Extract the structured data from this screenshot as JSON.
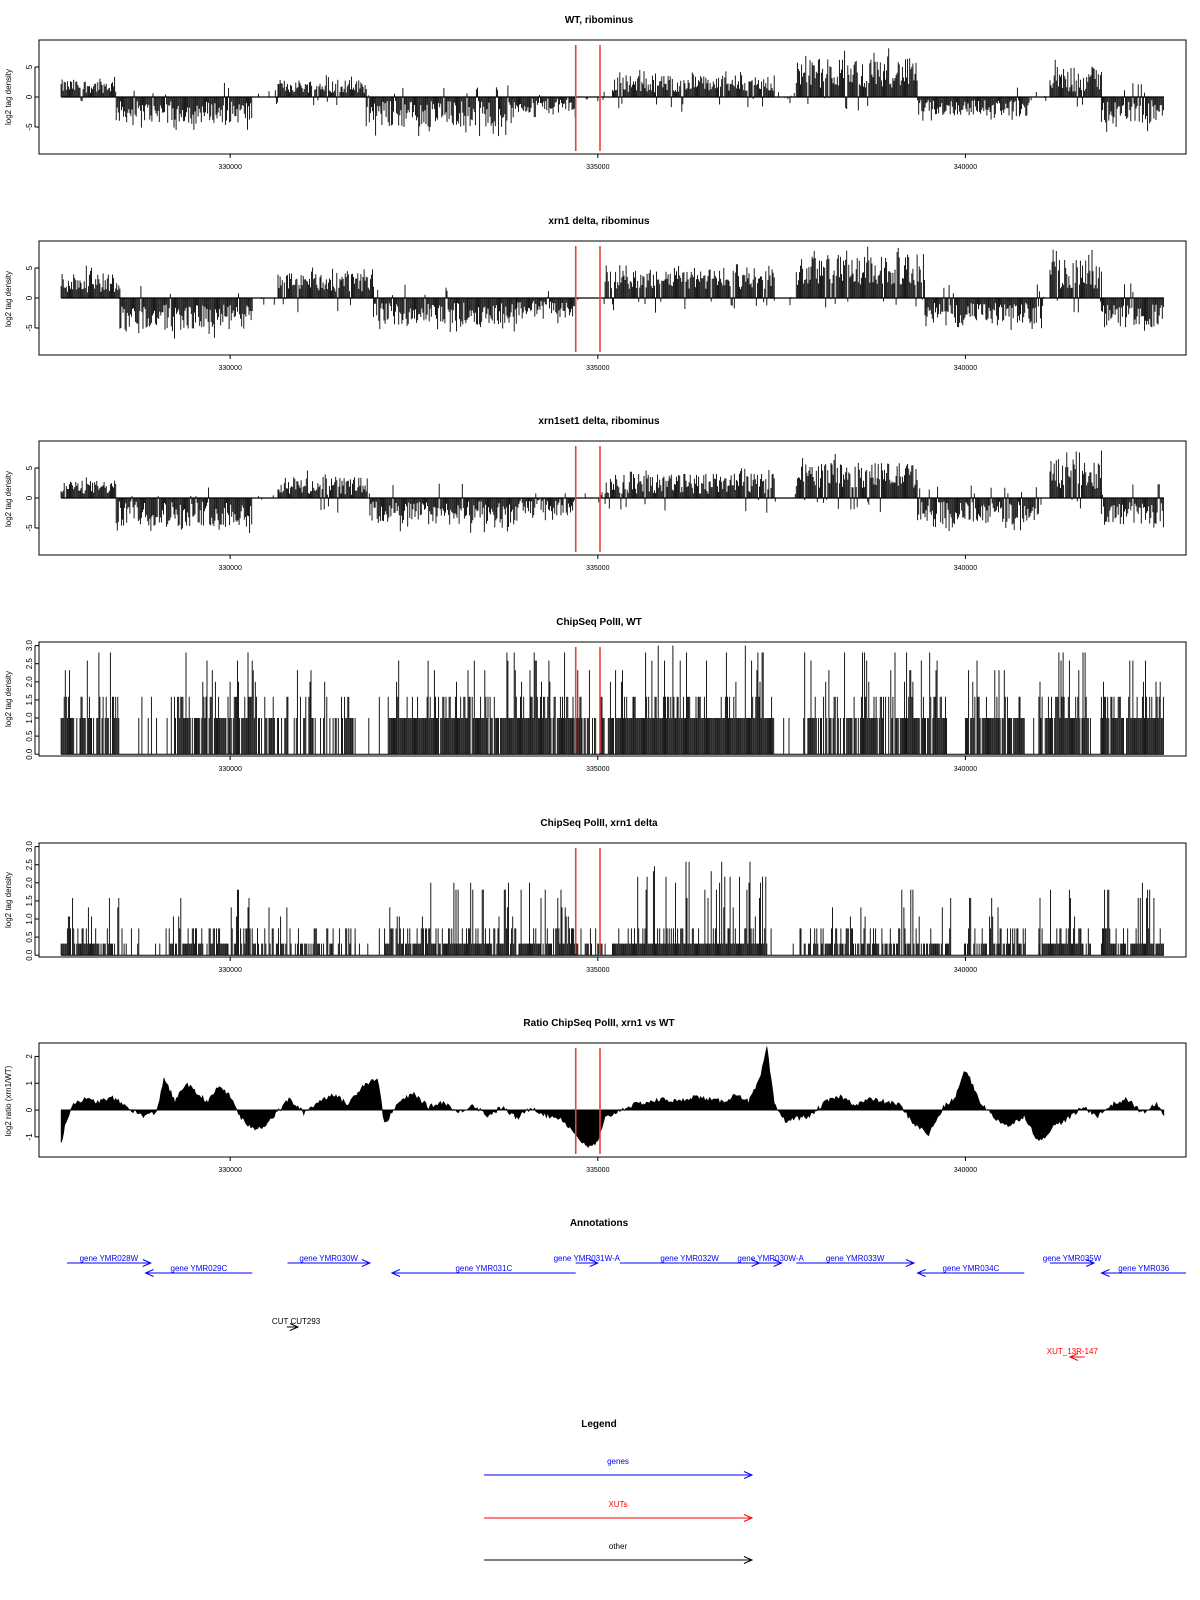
{
  "chart_data": [
    {
      "type": "bar",
      "title": "WT, ribominus",
      "ylabel": "log2 tag density",
      "xlim": [
        327400,
        343000
      ],
      "ylim": [
        -9.5,
        9.5
      ],
      "yticks": [
        -5,
        0,
        5
      ],
      "xticks": [
        330000,
        335000,
        340000
      ],
      "marker_lines_x": [
        334700,
        335030
      ],
      "data_range_x": [
        327700,
        342700
      ],
      "segments": [
        {
          "x": [
            327700,
            328450
          ],
          "mean": 1.8,
          "amp": 1.6
        },
        {
          "x": [
            328450,
            330300
          ],
          "mean": -2.5,
          "amp": 2.6
        },
        {
          "x": [
            330300,
            330650
          ],
          "mean": 0,
          "amp": 0.4
        },
        {
          "x": [
            330650,
            331850
          ],
          "mean": 1.8,
          "amp": 1.6
        },
        {
          "x": [
            331850,
            333850
          ],
          "mean": -2.8,
          "amp": 3.2
        },
        {
          "x": [
            333850,
            334700
          ],
          "mean": -1.5,
          "amp": 1.8
        },
        {
          "x": [
            334700,
            335200
          ],
          "mean": 0,
          "amp": 0.3
        },
        {
          "x": [
            335200,
            337400
          ],
          "mean": 2.2,
          "amp": 2.0
        },
        {
          "x": [
            337400,
            337700
          ],
          "mean": 0,
          "amp": 0.4
        },
        {
          "x": [
            337700,
            339350
          ],
          "mean": 4.0,
          "amp": 3.5
        },
        {
          "x": [
            339350,
            340850
          ],
          "mean": -1.8,
          "amp": 1.9
        },
        {
          "x": [
            340850,
            341150
          ],
          "mean": 0,
          "amp": 0.4
        },
        {
          "x": [
            341150,
            341850
          ],
          "mean": 3.0,
          "amp": 3.0
        },
        {
          "x": [
            341850,
            342700
          ],
          "mean": -2.5,
          "amp": 2.8
        }
      ]
    },
    {
      "type": "bar",
      "title": "xrn1 delta, ribominus",
      "ylabel": "log2 tag density",
      "xlim": [
        327400,
        343000
      ],
      "ylim": [
        -9.5,
        9.5
      ],
      "yticks": [
        -5,
        0,
        5
      ],
      "xticks": [
        330000,
        335000,
        340000
      ],
      "marker_lines_x": [
        334700,
        335030
      ],
      "data_range_x": [
        327700,
        342700
      ],
      "segments": [
        {
          "x": [
            327700,
            328500
          ],
          "mean": 2.6,
          "amp": 2.4
        },
        {
          "x": [
            328500,
            330300
          ],
          "mean": -3.2,
          "amp": 3.0
        },
        {
          "x": [
            330300,
            330650
          ],
          "mean": 0,
          "amp": 0.5
        },
        {
          "x": [
            330650,
            331950
          ],
          "mean": 2.6,
          "amp": 2.2
        },
        {
          "x": [
            331950,
            333900
          ],
          "mean": -2.6,
          "amp": 2.6
        },
        {
          "x": [
            333900,
            334700
          ],
          "mean": -1.8,
          "amp": 2.0
        },
        {
          "x": [
            334700,
            335100
          ],
          "mean": 0,
          "amp": 0.3
        },
        {
          "x": [
            335100,
            337400
          ],
          "mean": 3.0,
          "amp": 2.2
        },
        {
          "x": [
            337400,
            337700
          ],
          "mean": 0,
          "amp": 0.4
        },
        {
          "x": [
            337700,
            339450
          ],
          "mean": 4.5,
          "amp": 3.5
        },
        {
          "x": [
            339450,
            341050
          ],
          "mean": -2.6,
          "amp": 2.6
        },
        {
          "x": [
            341050,
            341150
          ],
          "mean": 0,
          "amp": 0.4
        },
        {
          "x": [
            341150,
            341850
          ],
          "mean": 4.0,
          "amp": 3.5
        },
        {
          "x": [
            341850,
            342700
          ],
          "mean": -3.0,
          "amp": 2.8
        }
      ]
    },
    {
      "type": "bar",
      "title": "xrn1set1 delta, ribominus",
      "ylabel": "log2 tag density",
      "xlim": [
        327400,
        343000
      ],
      "ylim": [
        -9.5,
        9.5
      ],
      "yticks": [
        -5,
        0,
        5
      ],
      "xticks": [
        330000,
        335000,
        340000
      ],
      "marker_lines_x": [
        334700,
        335030
      ],
      "data_range_x": [
        327700,
        342700
      ],
      "segments": [
        {
          "x": [
            327700,
            328450
          ],
          "mean": 1.8,
          "amp": 1.6
        },
        {
          "x": [
            328450,
            330300
          ],
          "mean": -2.6,
          "amp": 3.0
        },
        {
          "x": [
            330300,
            330650
          ],
          "mean": 0,
          "amp": 0.4
        },
        {
          "x": [
            330650,
            331900
          ],
          "mean": 2.0,
          "amp": 2.2
        },
        {
          "x": [
            331900,
            333900
          ],
          "mean": -2.5,
          "amp": 2.8
        },
        {
          "x": [
            333900,
            334700
          ],
          "mean": -1.5,
          "amp": 2.2
        },
        {
          "x": [
            334700,
            335100
          ],
          "mean": 0,
          "amp": 0.4
        },
        {
          "x": [
            335100,
            337400
          ],
          "mean": 2.4,
          "amp": 2.4
        },
        {
          "x": [
            337400,
            337700
          ],
          "mean": 0,
          "amp": 0.4
        },
        {
          "x": [
            337700,
            339350
          ],
          "mean": 3.8,
          "amp": 3.0
        },
        {
          "x": [
            339350,
            341000
          ],
          "mean": -2.4,
          "amp": 2.6
        },
        {
          "x": [
            341000,
            341150
          ],
          "mean": 0,
          "amp": 0.4
        },
        {
          "x": [
            341150,
            341850
          ],
          "mean": 4.0,
          "amp": 3.5
        },
        {
          "x": [
            341850,
            342700
          ],
          "mean": -2.6,
          "amp": 2.8
        }
      ]
    },
    {
      "type": "bar",
      "title": "ChipSeq PolII, WT",
      "ylabel": "log2 tag density",
      "xlim": [
        327400,
        343000
      ],
      "ylim": [
        -0.05,
        3.1
      ],
      "yticks": [
        0.0,
        0.5,
        1.0,
        1.5,
        2.0,
        2.5,
        3.0
      ],
      "ytick_labels": [
        "0.0",
        "0.5",
        "1.0",
        "1.5",
        "2.0",
        "2.5",
        "3.0"
      ],
      "xticks": [
        330000,
        335000,
        340000
      ],
      "marker_lines_x": [
        334700,
        335030
      ],
      "data_range_x": [
        327700,
        342700
      ],
      "levels": [
        0,
        1.0,
        1.585,
        2.0,
        2.32,
        2.585,
        2.81,
        3.0
      ],
      "segments": [
        {
          "x": [
            327700,
            328500
          ],
          "density": 0.85,
          "max_level": 6
        },
        {
          "x": [
            328500,
            329300
          ],
          "density": 0.15,
          "max_level": 4
        },
        {
          "x": [
            329300,
            330600
          ],
          "density": 0.85,
          "max_level": 6
        },
        {
          "x": [
            330600,
            331700
          ],
          "density": 0.55,
          "max_level": 4
        },
        {
          "x": [
            331700,
            332150
          ],
          "density": 0.1,
          "max_level": 3
        },
        {
          "x": [
            332150,
            334700
          ],
          "density": 0.95,
          "max_level": 6
        },
        {
          "x": [
            334700,
            335250
          ],
          "density": 0.7,
          "max_level": 5
        },
        {
          "x": [
            335250,
            337400
          ],
          "density": 1.0,
          "max_level": 7
        },
        {
          "x": [
            337400,
            337800
          ],
          "density": 0.05,
          "max_level": 3
        },
        {
          "x": [
            337800,
            339200
          ],
          "density": 0.8,
          "max_level": 6
        },
        {
          "x": [
            339200,
            339750
          ],
          "density": 0.9,
          "max_level": 6
        },
        {
          "x": [
            339750,
            340000
          ],
          "density": 0.1,
          "max_level": 3
        },
        {
          "x": [
            340000,
            340800
          ],
          "density": 0.85,
          "max_level": 5
        },
        {
          "x": [
            340800,
            341000
          ],
          "density": 0.1,
          "max_level": 3
        },
        {
          "x": [
            341000,
            341700
          ],
          "density": 0.9,
          "max_level": 6
        },
        {
          "x": [
            341700,
            341850
          ],
          "density": 0.1,
          "max_level": 3
        },
        {
          "x": [
            341850,
            342700
          ],
          "density": 0.9,
          "max_level": 6
        }
      ]
    },
    {
      "type": "bar",
      "title": "ChipSeq PolII, xrn1 delta",
      "ylabel": "log2 tag density",
      "xlim": [
        327400,
        343000
      ],
      "ylim": [
        -0.05,
        3.1
      ],
      "yticks": [
        0.0,
        0.5,
        1.0,
        1.5,
        2.0,
        2.5,
        3.0
      ],
      "ytick_labels": [
        "0.0",
        "0.5",
        "1.0",
        "1.5",
        "2.0",
        "2.5",
        "3.0"
      ],
      "xticks": [
        330000,
        335000,
        340000
      ],
      "marker_lines_x": [
        334700,
        335030
      ],
      "data_range_x": [
        327700,
        342700
      ],
      "levels": [
        0,
        0.32,
        0.74,
        1.07,
        1.32,
        1.58,
        1.81,
        2.0,
        2.17,
        2.32,
        2.46,
        2.58
      ],
      "segments": [
        {
          "x": [
            327700,
            328500
          ],
          "density": 0.75,
          "max_level": 5
        },
        {
          "x": [
            328500,
            329200
          ],
          "density": 0.15,
          "max_level": 3
        },
        {
          "x": [
            329200,
            330300
          ],
          "density": 0.8,
          "max_level": 6
        },
        {
          "x": [
            330300,
            331700
          ],
          "density": 0.55,
          "max_level": 4
        },
        {
          "x": [
            331700,
            332100
          ],
          "density": 0.1,
          "max_level": 2
        },
        {
          "x": [
            332100,
            334700
          ],
          "density": 0.9,
          "max_level": 7
        },
        {
          "x": [
            334700,
            335200
          ],
          "density": 0.6,
          "max_level": 4
        },
        {
          "x": [
            335200,
            337300
          ],
          "density": 1.0,
          "max_level": 11
        },
        {
          "x": [
            337300,
            337750
          ],
          "density": 0.05,
          "max_level": 2
        },
        {
          "x": [
            337750,
            339200
          ],
          "density": 0.8,
          "max_level": 6
        },
        {
          "x": [
            339200,
            339800
          ],
          "density": 0.85,
          "max_level": 6
        },
        {
          "x": [
            339800,
            340000
          ],
          "density": 0.1,
          "max_level": 2
        },
        {
          "x": [
            340000,
            340800
          ],
          "density": 0.8,
          "max_level": 5
        },
        {
          "x": [
            340800,
            341000
          ],
          "density": 0.1,
          "max_level": 2
        },
        {
          "x": [
            341000,
            341700
          ],
          "density": 0.85,
          "max_level": 6
        },
        {
          "x": [
            341700,
            341850
          ],
          "density": 0.1,
          "max_level": 2
        },
        {
          "x": [
            341850,
            342700
          ],
          "density": 0.9,
          "max_level": 7
        }
      ]
    },
    {
      "type": "area",
      "title": "Ratio ChipSeq PolII, xrn1 vs WT",
      "ylabel": "log2 ratio (xrn1/WT)",
      "xlim": [
        327400,
        343000
      ],
      "ylim": [
        -1.75,
        2.5
      ],
      "yticks": [
        -1,
        0,
        1,
        2
      ],
      "xticks": [
        330000,
        335000,
        340000
      ],
      "marker_lines_x": [
        334700,
        335030
      ],
      "x": [
        327700,
        327750,
        327850,
        328000,
        328200,
        328400,
        328600,
        328800,
        329000,
        329100,
        329250,
        329400,
        329550,
        329700,
        329850,
        330000,
        330150,
        330300,
        330450,
        330600,
        330800,
        331000,
        331200,
        331400,
        331600,
        331800,
        332000,
        332100,
        332300,
        332500,
        332700,
        332900,
        333100,
        333300,
        333500,
        333700,
        333900,
        334100,
        334300,
        334500,
        334700,
        334850,
        335000,
        335100,
        335300,
        335500,
        335700,
        335900,
        336100,
        336300,
        336500,
        336700,
        336900,
        337050,
        337200,
        337300,
        337400,
        337550,
        337700,
        337900,
        338100,
        338300,
        338500,
        338700,
        338900,
        339100,
        339300,
        339500,
        339700,
        339850,
        340000,
        340200,
        340400,
        340600,
        340800,
        341000,
        341200,
        341400,
        341600,
        341800,
        342000,
        342200,
        342400,
        342600,
        342700
      ],
      "y": [
        -1.3,
        -0.6,
        0.2,
        0.4,
        0.3,
        0.45,
        0.1,
        -0.2,
        -0.1,
        1.2,
        0.3,
        1.0,
        0.6,
        0.3,
        0.9,
        0.5,
        -0.3,
        -0.7,
        -0.6,
        -0.2,
        0.4,
        -0.1,
        0.3,
        0.6,
        0.2,
        0.9,
        1.2,
        -0.5,
        0.3,
        0.6,
        0.1,
        0.3,
        -0.1,
        0.2,
        -0.2,
        0.1,
        -0.3,
        0.1,
        -0.2,
        -0.3,
        -0.9,
        -1.4,
        -1.2,
        -0.3,
        0.0,
        0.2,
        0.3,
        0.4,
        0.3,
        0.5,
        0.4,
        0.3,
        0.6,
        0.3,
        1.1,
        2.3,
        0.2,
        -0.4,
        -0.3,
        -0.2,
        0.3,
        0.5,
        0.2,
        0.4,
        0.3,
        0.2,
        -0.5,
        -0.9,
        0.1,
        0.4,
        1.5,
        0.3,
        -0.3,
        -0.6,
        -0.2,
        -1.2,
        -0.6,
        -0.3,
        0.1,
        -0.2,
        0.2,
        0.4,
        -0.1,
        0.2,
        -0.2
      ]
    }
  ],
  "annotations": {
    "title": "Annotations",
    "genes": [
      {
        "label": "gene YMR028W",
        "x": [
          327780,
          328920
        ],
        "dir": "right",
        "row": 0
      },
      {
        "label": "gene YMR029C",
        "x": [
          328850,
          330300
        ],
        "dir": "left",
        "row": 1
      },
      {
        "label": "gene YMR030W",
        "x": [
          330780,
          331900
        ],
        "dir": "right",
        "row": 0
      },
      {
        "label": "gene YMR031C",
        "x": [
          332200,
          334700
        ],
        "dir": "left",
        "row": 1
      },
      {
        "label": "gene YMR031W-A",
        "x": [
          334700,
          335000
        ],
        "dir": "right",
        "row": 0
      },
      {
        "label": "gene YMR032W",
        "x": [
          335300,
          337200
        ],
        "dir": "right",
        "row": 0
      },
      {
        "label": "gene YMR030W-A",
        "x": [
          337200,
          337500
        ],
        "dir": "right",
        "row": 0
      },
      {
        "label": "gene YMR033W",
        "x": [
          337700,
          339300
        ],
        "dir": "right",
        "row": 0
      },
      {
        "label": "gene YMR034C",
        "x": [
          339350,
          340800
        ],
        "dir": "left",
        "row": 1
      },
      {
        "label": "gene YMR035W",
        "x": [
          341150,
          341750
        ],
        "dir": "right",
        "row": 0
      },
      {
        "label": "gene YMR036",
        "x": [
          341850,
          343000
        ],
        "dir": "left",
        "row": 1
      }
    ],
    "other": [
      {
        "label": "CUT CUT293",
        "x": [
          330500,
          330650
        ],
        "dir": "right"
      }
    ],
    "xuts": [
      {
        "label": "XUT_13R-147",
        "x": [
          341150,
          341350
        ],
        "dir": "left"
      }
    ]
  },
  "legend": {
    "title": "Legend",
    "items": [
      {
        "label": "genes",
        "color": "#0000ff"
      },
      {
        "label": "XUTs",
        "color": "#ff0000"
      },
      {
        "label": "other",
        "color": "#000000"
      }
    ]
  },
  "colors": {
    "marker": "#e8433a",
    "gene": "#0000ff",
    "xut": "#ff0000",
    "other": "#000000"
  }
}
